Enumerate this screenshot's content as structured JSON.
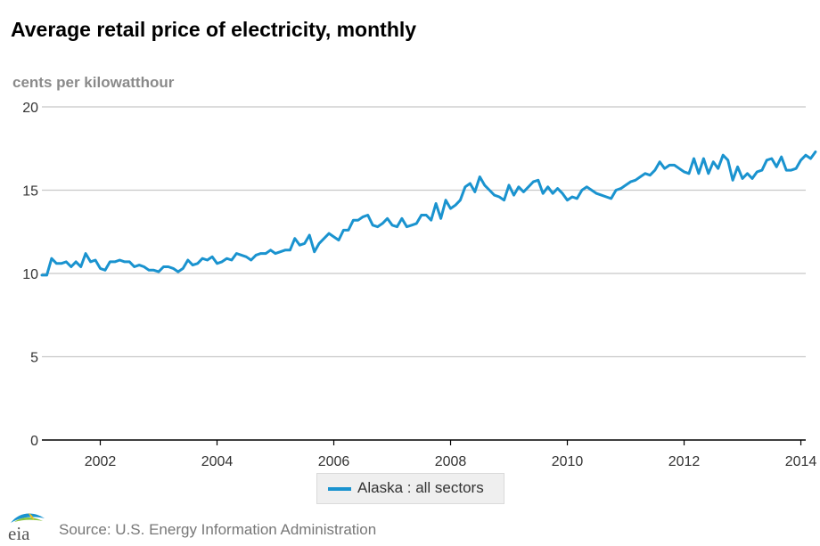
{
  "header": {
    "title": "Average retail price of electricity, monthly",
    "units": "cents per kilowatthour"
  },
  "legend": {
    "label": "Alaska : all sectors"
  },
  "footer": {
    "source": "Source: U.S. Energy Information Administration",
    "logo_text": "eia"
  },
  "colors": {
    "series": "#1a93cf",
    "grid": "#c8c8c8",
    "axis": "#000000"
  },
  "chart_data": {
    "type": "line",
    "title": "Average retail price of electricity, monthly",
    "ylabel": "cents per kilowatthour",
    "xlabel": "",
    "ylim": [
      0,
      20
    ],
    "yticks": [
      0,
      5,
      10,
      15,
      20
    ],
    "xlim": [
      "2001-01",
      "2014-02"
    ],
    "xtick_labels": [
      "2002",
      "2004",
      "2006",
      "2008",
      "2010",
      "2012",
      "2014"
    ],
    "grid": true,
    "legend_position": "bottom-center",
    "series": [
      {
        "name": "Alaska : all sectors",
        "color": "#1a93cf",
        "start": "2001-01",
        "values": [
          9.9,
          9.9,
          10.9,
          10.6,
          10.6,
          10.7,
          10.4,
          10.7,
          10.4,
          11.2,
          10.7,
          10.8,
          10.3,
          10.2,
          10.7,
          10.7,
          10.8,
          10.7,
          10.7,
          10.4,
          10.5,
          10.4,
          10.2,
          10.2,
          10.1,
          10.4,
          10.4,
          10.3,
          10.1,
          10.3,
          10.8,
          10.5,
          10.6,
          10.9,
          10.8,
          11.0,
          10.6,
          10.7,
          10.9,
          10.8,
          11.2,
          11.1,
          11.0,
          10.8,
          11.1,
          11.2,
          11.2,
          11.4,
          11.2,
          11.3,
          11.4,
          11.4,
          12.1,
          11.7,
          11.8,
          12.3,
          11.3,
          11.8,
          12.1,
          12.4,
          12.2,
          12.0,
          12.6,
          12.6,
          13.2,
          13.2,
          13.4,
          13.5,
          12.9,
          12.8,
          13.0,
          13.3,
          12.9,
          12.8,
          13.3,
          12.8,
          12.9,
          13.0,
          13.5,
          13.5,
          13.2,
          14.2,
          13.3,
          14.4,
          13.9,
          14.1,
          14.4,
          15.2,
          15.4,
          14.9,
          15.8,
          15.3,
          15.0,
          14.7,
          14.6,
          14.4,
          15.3,
          14.7,
          15.2,
          14.9,
          15.2,
          15.5,
          15.6,
          14.8,
          15.2,
          14.8,
          15.1,
          14.8,
          14.4,
          14.6,
          14.5,
          15.0,
          15.2,
          15.0,
          14.8,
          14.7,
          14.6,
          14.5,
          15.0,
          15.1,
          15.3,
          15.5,
          15.6,
          15.8,
          16.0,
          15.9,
          16.2,
          16.7,
          16.3,
          16.5,
          16.5,
          16.3,
          16.1,
          16.0,
          16.9,
          16.0,
          16.9,
          16.0,
          16.7,
          16.3,
          17.1,
          16.8,
          15.6,
          16.4,
          15.7,
          16.0,
          15.7,
          16.1,
          16.2,
          16.8,
          16.9,
          16.4,
          17.0,
          16.2,
          16.2,
          16.3,
          16.8,
          17.1,
          16.9,
          17.3
        ]
      }
    ]
  }
}
